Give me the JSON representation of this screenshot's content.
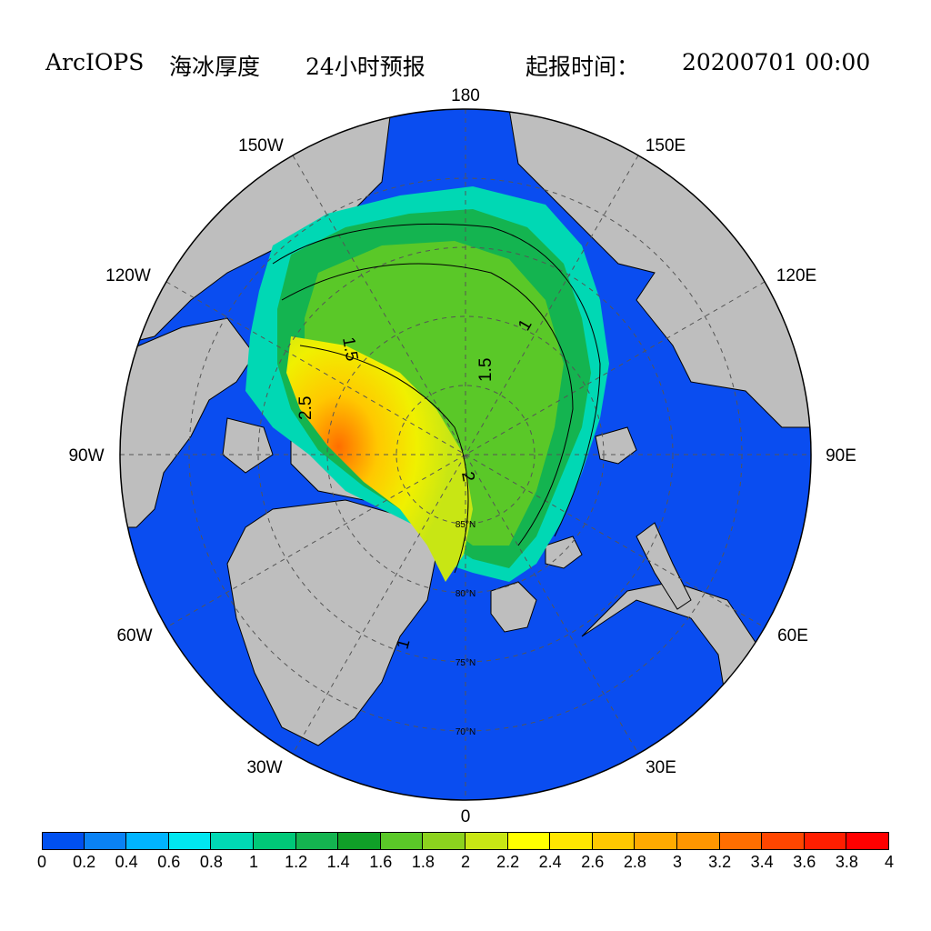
{
  "title": {
    "model": "ArcIOPS",
    "variable": "海冰厚度",
    "forecast": "24小时预报",
    "init_label": "起报时间：",
    "init_time": "20200701 00:00"
  },
  "longitude_labels": [
    "180",
    "150E",
    "120E",
    "90E",
    "60E",
    "30E",
    "0",
    "30W",
    "60W",
    "90W",
    "120W",
    "150W"
  ],
  "latitude_labels": [
    "85°N",
    "80°N",
    "75°N",
    "70°N"
  ],
  "contour_labels": [
    "1",
    "1.5",
    "1.5",
    "2",
    "2.5",
    "1",
    "1"
  ],
  "colorbar": {
    "ticks": [
      "0",
      "0.2",
      "0.4",
      "0.6",
      "0.8",
      "1",
      "1.2",
      "1.4",
      "1.6",
      "1.8",
      "2",
      "2.2",
      "2.4",
      "2.6",
      "2.8",
      "3",
      "3.2",
      "3.4",
      "3.6",
      "3.8",
      "4"
    ],
    "colors": [
      "#0050f0",
      "#0a82f5",
      "#00b4ff",
      "#00e6f0",
      "#00d8b4",
      "#00c878",
      "#14b450",
      "#10a028",
      "#5ac828",
      "#8cd21e",
      "#c8e614",
      "#ffff00",
      "#ffe600",
      "#ffc800",
      "#ffaa00",
      "#ff9600",
      "#ff6e00",
      "#ff4600",
      "#ff1e00",
      "#ff0000"
    ]
  },
  "colors": {
    "land": "#bebebe",
    "ocean_open": "#0a4df0",
    "graticule": "#555555"
  }
}
